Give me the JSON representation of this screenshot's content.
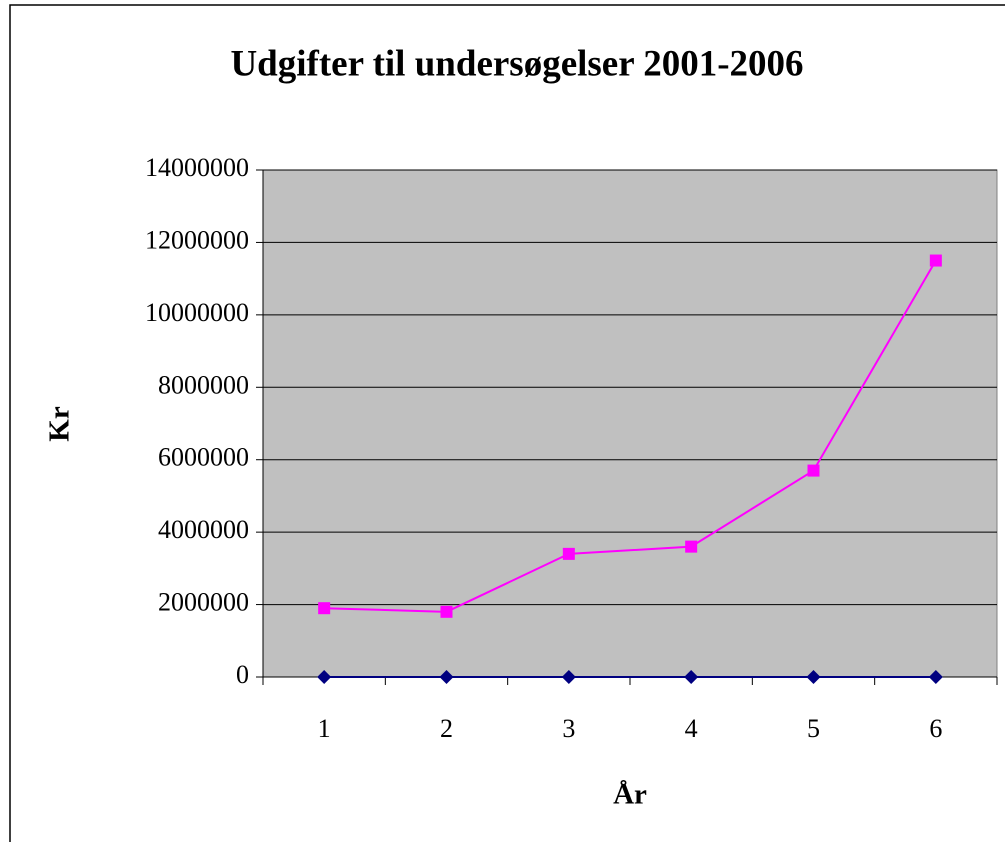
{
  "chart_data": {
    "type": "line",
    "title": "Udgifter til undersøgelser 2001-2006",
    "x_label": "År",
    "y_label": "Kr",
    "categories": [
      "1",
      "2",
      "3",
      "4",
      "5",
      "6"
    ],
    "series": [
      {
        "color": "#ff00ff",
        "marker": "square",
        "values": [
          1900000,
          1800000,
          3400000,
          3600000,
          5700000,
          11500000
        ]
      },
      {
        "color": "#000080",
        "marker": "diamond",
        "values": [
          0,
          0,
          0,
          0,
          0,
          0
        ]
      }
    ],
    "ylim": [
      0,
      14000000
    ],
    "yticks": [
      0,
      2000000,
      4000000,
      6000000,
      8000000,
      10000000,
      12000000,
      14000000
    ],
    "grid": true,
    "plot_background": "#c0c0c0"
  }
}
